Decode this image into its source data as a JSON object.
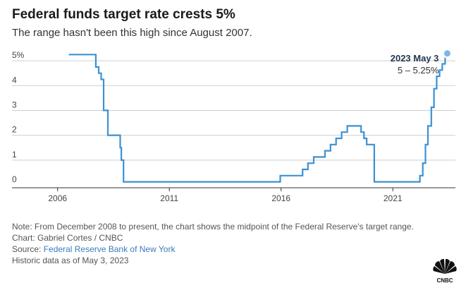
{
  "title": "Federal funds target rate crests 5%",
  "subtitle": "The range hasn't been this high since August 2007.",
  "notes": {
    "note": "Note: From December 2008 to present, the chart shows the midpoint of the Federal Reserve's target range.",
    "chart_credit": "Chart: Gabriel Cortes / CNBC",
    "source_prefix": "Source: ",
    "source_name": "Federal Reserve Bank of New York",
    "historic": "Historic data as of May 3, 2023"
  },
  "logo": {
    "icon": "nbc-peacock-icon",
    "text": "CNBC"
  },
  "colors": {
    "line": "#3c91d2",
    "dot": "#7fb6e6",
    "grid": "#cfcfcf",
    "axis": "#333333"
  },
  "chart_data": {
    "type": "line",
    "title": "Federal funds target rate crests 5%",
    "subtitle": "The range hasn't been this high since August 2007.",
    "xlabel": "",
    "ylabel": "",
    "xlim": [
      2005.0,
      2023.8
    ],
    "ylim": [
      0,
      5.4
    ],
    "x_ticks": [
      2006,
      2011,
      2016,
      2021
    ],
    "x_tick_labels": [
      "2006",
      "2011",
      "2016",
      "2021"
    ],
    "y_ticks": [
      0,
      1,
      2,
      3,
      4,
      5
    ],
    "y_tick_labels": [
      "0",
      "1",
      "2",
      "3",
      "4",
      "5%"
    ],
    "grid": "horizontal",
    "series": [
      {
        "name": "",
        "step": true,
        "points": [
          [
            2006.5,
            5.25
          ],
          [
            2007.71,
            4.75
          ],
          [
            2007.84,
            4.5
          ],
          [
            2007.95,
            4.25
          ],
          [
            2008.06,
            3.0
          ],
          [
            2008.08,
            3.0
          ],
          [
            2008.25,
            2.0
          ],
          [
            2008.8,
            1.5
          ],
          [
            2008.85,
            1.0
          ],
          [
            2008.95,
            0.125
          ],
          [
            2015.96,
            0.375
          ],
          [
            2016.96,
            0.625
          ],
          [
            2017.2,
            0.875
          ],
          [
            2017.46,
            1.125
          ],
          [
            2017.96,
            1.375
          ],
          [
            2018.21,
            1.625
          ],
          [
            2018.46,
            1.875
          ],
          [
            2018.71,
            2.125
          ],
          [
            2018.96,
            2.375
          ],
          [
            2019.58,
            2.125
          ],
          [
            2019.71,
            1.875
          ],
          [
            2019.83,
            1.625
          ],
          [
            2020.17,
            0.125
          ],
          [
            2022.21,
            0.375
          ],
          [
            2022.34,
            0.875
          ],
          [
            2022.46,
            1.625
          ],
          [
            2022.57,
            2.375
          ],
          [
            2022.72,
            3.125
          ],
          [
            2022.84,
            3.875
          ],
          [
            2022.96,
            4.375
          ],
          [
            2023.09,
            4.625
          ],
          [
            2023.21,
            4.875
          ],
          [
            2023.34,
            5.125
          ]
        ]
      }
    ],
    "annotation": {
      "x": 2023.34,
      "y": 5.125,
      "label": "2023 May 3",
      "value": "5 – 5.25%"
    }
  }
}
